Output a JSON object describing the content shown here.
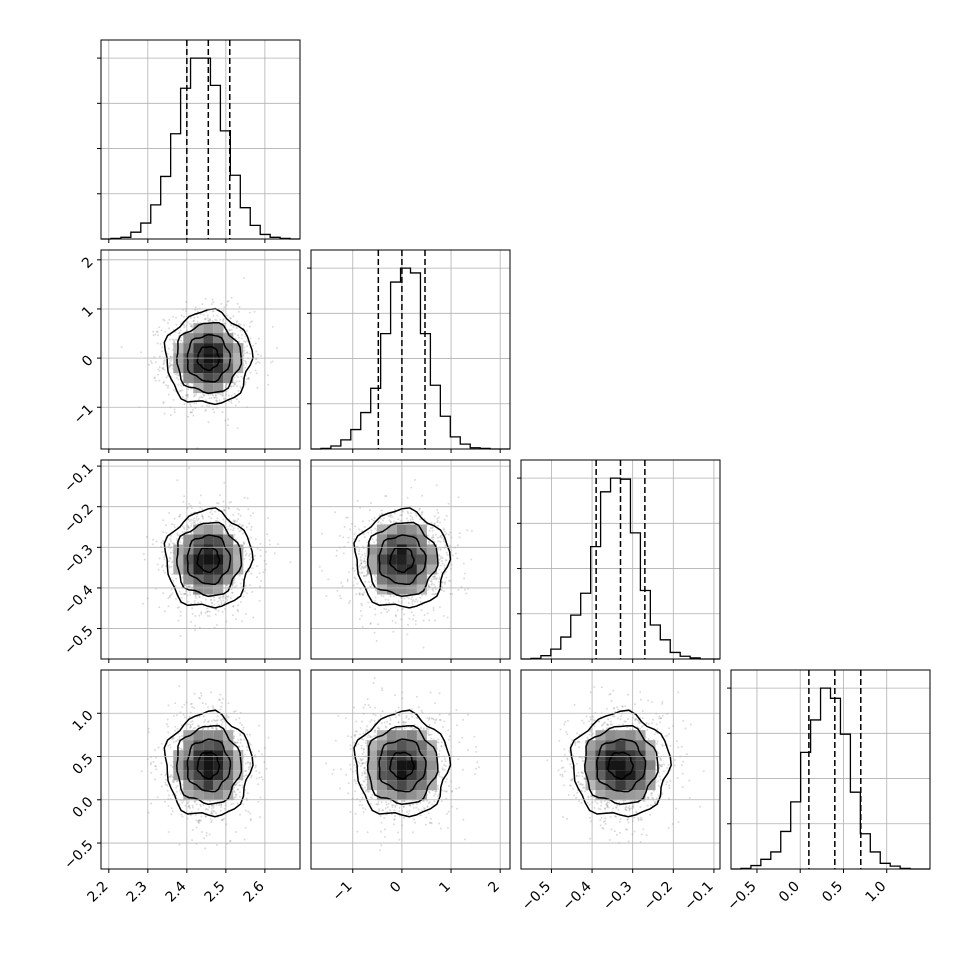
{
  "chart_data": {
    "type": "corner",
    "grid": true,
    "parameters": [
      {
        "xlim": [
          2.18,
          2.69
        ],
        "ticks": [
          "2.2",
          "2.3",
          "2.4",
          "2.5",
          "2.6"
        ],
        "tick_values": [
          2.2,
          2.3,
          2.4,
          2.5,
          2.6
        ],
        "quantiles": [
          2.4,
          2.455,
          2.51
        ],
        "hist_counts": [
          0,
          1,
          3,
          12,
          28,
          60,
          110,
          185,
          265,
          318,
          318,
          270,
          190,
          112,
          55,
          24,
          8,
          3,
          1,
          0
        ]
      },
      {
        "xlim": [
          -1.85,
          2.2
        ],
        "ticks": [
          "−1",
          "0",
          "1",
          "2"
        ],
        "tick_values": [
          -1,
          0,
          1,
          2
        ],
        "quantiles": [
          -0.48,
          0.0,
          0.47
        ],
        "hist_counts": [
          0,
          1,
          5,
          15,
          32,
          60,
          100,
          190,
          275,
          298,
          290,
          190,
          105,
          54,
          20,
          8,
          2,
          1,
          0,
          0
        ]
      },
      {
        "xlim": [
          -0.575,
          -0.085
        ],
        "ticks": [
          "−0.5",
          "−0.4",
          "−0.3",
          "−0.2",
          "−0.1"
        ],
        "tick_values": [
          -0.5,
          -0.4,
          -0.3,
          -0.2,
          -0.1
        ],
        "quantiles": [
          -0.39,
          -0.33,
          -0.27
        ],
        "hist_counts": [
          0,
          1,
          6,
          18,
          40,
          80,
          120,
          205,
          305,
          330,
          328,
          230,
          125,
          62,
          35,
          12,
          5,
          2,
          0,
          0
        ]
      },
      {
        "xlim": [
          -0.8,
          1.5
        ],
        "ticks": [
          "−0.5",
          "0.0",
          "0.5",
          "1.0"
        ],
        "tick_values": [
          -0.5,
          0.0,
          0.5,
          1.0
        ],
        "quantiles": [
          0.1,
          0.4,
          0.7
        ],
        "hist_counts": [
          0,
          1,
          6,
          17,
          30,
          66,
          118,
          205,
          262,
          318,
          300,
          237,
          135,
          62,
          30,
          10,
          5,
          1,
          0,
          0
        ]
      }
    ]
  }
}
